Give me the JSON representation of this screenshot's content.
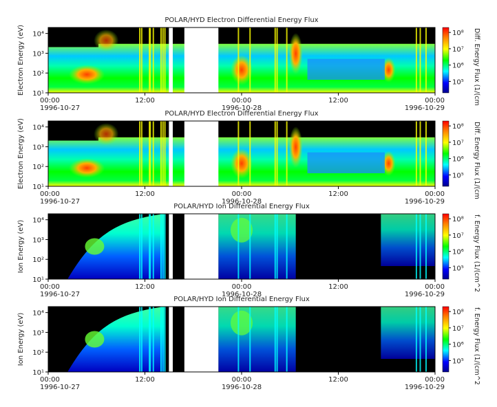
{
  "chart_data": [
    {
      "type": "heatmap",
      "title": "POLAR/HYD  Electron Differential Energy Flux",
      "ylabel": "Electron Energy (eV)",
      "colorbar_label": "Diff. Energy Flux (1/(cm",
      "yticks": [
        "10⁴",
        "10³",
        "10²",
        "10¹"
      ],
      "ylim": [
        10,
        20000
      ],
      "yscale": "log",
      "cticks": [
        "10⁸",
        "10⁷",
        "10⁶",
        "10⁵"
      ],
      "clim": [
        20000,
        200000000
      ],
      "cscale": "log",
      "xtick_times": [
        "00:00",
        "12:00",
        "00:00",
        "12:00",
        "00:00"
      ],
      "xtick_dates": [
        "1996-10-27",
        "",
        "1996-10-28",
        "",
        "1996-10-29"
      ],
      "xlim": [
        "1996-10-27 00:00",
        "1996-10-29 00:00"
      ]
    },
    {
      "type": "heatmap",
      "title": "POLAR/HYD  Electron Differential Energy Flux",
      "ylabel": "Electron Energy (eV)",
      "colorbar_label": "Diff. Energy Flux (1/(cm",
      "yticks": [
        "10⁴",
        "10³",
        "10²",
        "10¹"
      ],
      "ylim": [
        10,
        20000
      ],
      "yscale": "log",
      "cticks": [
        "10⁸",
        "10⁷",
        "10⁶",
        "10⁵"
      ],
      "clim": [
        20000,
        200000000
      ],
      "cscale": "log",
      "xtick_times": [
        "00:00",
        "12:00",
        "00:00",
        "12:00",
        "00:00"
      ],
      "xtick_dates": [
        "1996-10-27",
        "",
        "1996-10-28",
        "",
        "1996-10-29"
      ],
      "xlim": [
        "1996-10-27 00:00",
        "1996-10-29 00:00"
      ]
    },
    {
      "type": "heatmap",
      "title": "POLAR/HYD  Ion Differential Energy Flux",
      "ylabel": "Ion Energy (eV)",
      "colorbar_label": "f. Energy Flux (1/(cm^2",
      "yticks": [
        "10⁴",
        "10³",
        "10²",
        "10¹"
      ],
      "ylim": [
        10,
        20000
      ],
      "yscale": "log",
      "cticks": [
        "10⁸",
        "10⁷",
        "10⁶",
        "10⁵"
      ],
      "clim": [
        20000,
        200000000
      ],
      "cscale": "log",
      "xtick_times": [
        "00:00",
        "12:00",
        "00:00",
        "12:00",
        "00:00"
      ],
      "xtick_dates": [
        "1996-10-27",
        "",
        "1996-10-28",
        "",
        "1996-10-29"
      ],
      "xlim": [
        "1996-10-27 00:00",
        "1996-10-29 00:00"
      ]
    },
    {
      "type": "heatmap",
      "title": "POLAR/HYD  Ion Differential Energy Flux",
      "ylabel": "Ion Energy (eV)",
      "colorbar_label": "f. Energy Flux (1/(cm^2",
      "yticks": [
        "10⁴",
        "10³",
        "10²",
        "10¹"
      ],
      "ylim": [
        10,
        20000
      ],
      "yscale": "log",
      "cticks": [
        "10⁸",
        "10⁷",
        "10⁶",
        "10⁵"
      ],
      "clim": [
        20000,
        200000000
      ],
      "cscale": "log",
      "xtick_times": [
        "00:00",
        "12:00",
        "00:00",
        "12:00",
        "00:00"
      ],
      "xtick_dates": [
        "1996-10-27",
        "",
        "1996-10-28",
        "",
        "1996-10-29"
      ],
      "xlim": [
        "1996-10-27 00:00",
        "1996-10-29 00:00"
      ]
    }
  ]
}
